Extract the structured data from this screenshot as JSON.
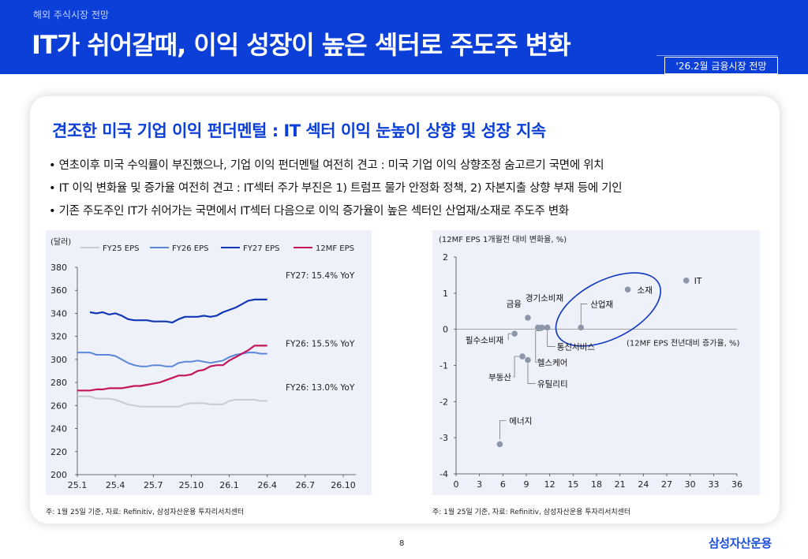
{
  "header": {
    "kicker": "해외 주식시장 전망",
    "title": "IT가 쉬어갈때, 이익 성장이 높은 섹터로 주도주 변화",
    "badge": "'26.2월 금융시장 전망",
    "color": "#0b3fd8"
  },
  "subtitle": "견조한 미국 기업 이익 펀더멘털 : IT 섹터 이익 눈높이 상향 및 성장 지속",
  "bullets": [
    "연초이후 미국 수익률이 부진했으나, 기업 이익 펀더멘털 여전히 견고 : 미국 기업 이익 상향조정 숨고르기 국면에 위치",
    "IT 이익 변화율 및 증가율 여전히 견고 : IT섹터 주가 부진은 1) 트럼프 물가 안정화 정책, 2) 자본지출 상향 부재 등에 기인",
    "기존 주도주인 IT가 쉬어가는 국면에서 IT섹터 다음으로 이익 증가율이 높은 섹터인 산업재/소재로 주도주 변화"
  ],
  "chart_data": [
    {
      "type": "line",
      "ylabel": "(달러)",
      "ylim": [
        200,
        380
      ],
      "yticks": [
        "380",
        "360",
        "340",
        "320",
        "300",
        "280",
        "260",
        "240",
        "220",
        "200"
      ],
      "xticks": [
        "25.1",
        "25.4",
        "25.7",
        "25.10",
        "26.1",
        "26.4",
        "26.7",
        "26.10"
      ],
      "xrange_months": [
        0,
        22
      ],
      "series": [
        {
          "name": "FY25 EPS",
          "color": "#c8cbd2",
          "width": 2,
          "x": [
            0,
            0.5,
            1,
            1.5,
            2,
            2.5,
            3,
            3.5,
            4,
            4.5,
            5,
            5.5,
            6,
            6.5,
            7,
            7.5,
            8,
            8.5,
            9,
            9.5,
            10,
            10.5,
            11,
            11.5,
            12,
            12.5,
            13,
            13.5,
            14,
            14.5,
            15
          ],
          "y": [
            268,
            268,
            268,
            266,
            266,
            266,
            265,
            263,
            261,
            260,
            259,
            259,
            259,
            259,
            259,
            259,
            259,
            261,
            262,
            262,
            262,
            261,
            261,
            261,
            264,
            265,
            265,
            265,
            265,
            264,
            264
          ]
        },
        {
          "name": "FY26 EPS",
          "color": "#5b87d8",
          "width": 2,
          "x": [
            0,
            0.5,
            1,
            1.5,
            2,
            2.5,
            3,
            3.5,
            4,
            4.5,
            5,
            5.5,
            6,
            6.5,
            7,
            7.5,
            8,
            8.5,
            9,
            9.5,
            10,
            10.5,
            11,
            11.5,
            12,
            12.5,
            13,
            13.5,
            14,
            14.5,
            15
          ],
          "y": [
            306,
            306,
            306,
            304,
            304,
            304,
            303,
            300,
            297,
            295,
            294,
            294,
            295,
            295,
            294,
            294,
            297,
            298,
            298,
            299,
            298,
            297,
            298,
            299,
            302,
            304,
            305,
            306,
            306,
            305,
            305
          ]
        },
        {
          "name": "FY27 EPS",
          "color": "#1037b5",
          "width": 2.2,
          "x": [
            1,
            1.5,
            2,
            2.5,
            3,
            3.5,
            4,
            4.5,
            5,
            5.5,
            6,
            6.5,
            7,
            7.5,
            8,
            8.5,
            9,
            9.5,
            10,
            10.5,
            11,
            11.5,
            12,
            12.5,
            13,
            13.5,
            14,
            14.5,
            15
          ],
          "y": [
            341,
            340,
            341,
            339,
            340,
            338,
            335,
            334,
            334,
            334,
            333,
            333,
            333,
            332,
            335,
            337,
            337,
            337,
            338,
            337,
            338,
            341,
            343,
            345,
            348,
            351,
            352,
            352,
            352
          ]
        },
        {
          "name": "12MF EPS",
          "color": "#c4165e",
          "width": 2.2,
          "x": [
            0,
            0.5,
            1,
            1.5,
            2,
            2.5,
            3,
            3.5,
            4,
            4.5,
            5,
            5.5,
            6,
            6.5,
            7,
            7.5,
            8,
            8.5,
            9,
            9.5,
            10,
            10.5,
            11,
            11.5,
            12,
            12.5,
            13,
            13.5,
            14,
            14.5,
            15
          ],
          "y": [
            273,
            273,
            273,
            274,
            274,
            275,
            275,
            275,
            276,
            277,
            277,
            278,
            279,
            280,
            282,
            284,
            286,
            286,
            287,
            290,
            291,
            294,
            295,
            295,
            299,
            302,
            305,
            308,
            312,
            312,
            312
          ]
        }
      ],
      "annotations": [
        {
          "text": "FY27: 15.4% YoY",
          "y": 373
        },
        {
          "text": "FY26: 15.5% YoY",
          "y": 314
        },
        {
          "text": "FY26: 13.0% YoY",
          "y": 276
        }
      ]
    },
    {
      "type": "scatter",
      "ylabel": "(12MF EPS 1개월전 대비 변화율, %)",
      "xlabel": "(12MF EPS 전년대비 증가율, %)",
      "xlim": [
        0,
        36
      ],
      "ylim": [
        -4,
        2
      ],
      "xticks": [
        "0",
        "3",
        "6",
        "9",
        "12",
        "15",
        "18",
        "21",
        "24",
        "27",
        "30",
        "33",
        "36"
      ],
      "yticks": [
        "2",
        "1",
        "0",
        "-1",
        "-2",
        "-3",
        "-4"
      ],
      "point_color": "#8e95a8",
      "ellipse_color": "#1036c0",
      "points": [
        {
          "label": "IT",
          "x": 29.5,
          "y": 1.35
        },
        {
          "label": "소재",
          "x": 22.0,
          "y": 1.1
        },
        {
          "label": "산업재",
          "x": 16.0,
          "y": 0.05
        },
        {
          "label": "경기소비재",
          "x": 10.5,
          "y": 0.05
        },
        {
          "label": "금융",
          "x": 9.2,
          "y": 0.32
        },
        {
          "label": "통신서비스",
          "x": 11.7,
          "y": 0.05
        },
        {
          "label": "필수소비재",
          "x": 7.5,
          "y": -0.12
        },
        {
          "label": "유틸리티",
          "x": 9.2,
          "y": -0.85
        },
        {
          "label": "부동산",
          "x": 8.5,
          "y": -0.75
        },
        {
          "label": "헬스케어",
          "x": 11.0,
          "y": 0.05
        },
        {
          "label": "에너지",
          "x": 5.6,
          "y": -3.18
        }
      ]
    }
  ],
  "sources": {
    "left": "주: 1월 25일 기준, 자료: Refinitiv, 삼성자산운용 투자리서치센터",
    "right": "주: 1월 25일 기준, 자료: Refinitiv, 삼성자산운용 투자리서치센터"
  },
  "page_number": "8",
  "logo": "삼성자산운용"
}
